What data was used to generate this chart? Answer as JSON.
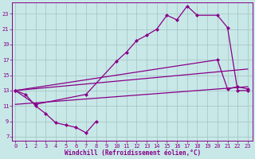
{
  "xlabel": "Windchill (Refroidissement éolien,°C)",
  "background_color": "#c8e8e8",
  "grid_color": "#a8c8c8",
  "line_color": "#880088",
  "x_ticks": [
    0,
    1,
    2,
    3,
    4,
    5,
    6,
    7,
    8,
    9,
    10,
    11,
    12,
    13,
    14,
    15,
    16,
    17,
    18,
    19,
    20,
    21,
    22,
    23
  ],
  "y_ticks": [
    7,
    9,
    11,
    13,
    15,
    17,
    19,
    21,
    23
  ],
  "xlim": [
    -0.3,
    23.5
  ],
  "ylim": [
    6.5,
    24.5
  ],
  "series1_x": [
    0,
    1,
    2,
    3,
    4,
    5,
    6,
    7,
    8
  ],
  "series1_y": [
    13.0,
    12.5,
    11.0,
    10.0,
    8.8,
    8.5,
    8.2,
    7.5,
    9.0
  ],
  "series2_x": [
    0,
    2,
    7,
    10,
    11,
    12,
    13,
    14,
    15,
    16,
    17,
    18,
    20,
    21,
    22,
    23
  ],
  "series2_y": [
    13.0,
    11.2,
    12.5,
    16.8,
    18.0,
    19.5,
    20.2,
    21.0,
    22.8,
    22.2,
    24.0,
    22.8,
    22.8,
    21.2,
    13.0,
    13.0
  ],
  "series3_x": [
    0,
    23
  ],
  "series3_y": [
    13.0,
    15.8
  ],
  "series4_x": [
    0,
    23
  ],
  "series4_y": [
    11.2,
    13.5
  ],
  "series5_x": [
    0,
    20,
    21,
    22,
    23
  ],
  "series5_y": [
    13.0,
    17.0,
    13.2,
    13.5,
    13.2
  ]
}
